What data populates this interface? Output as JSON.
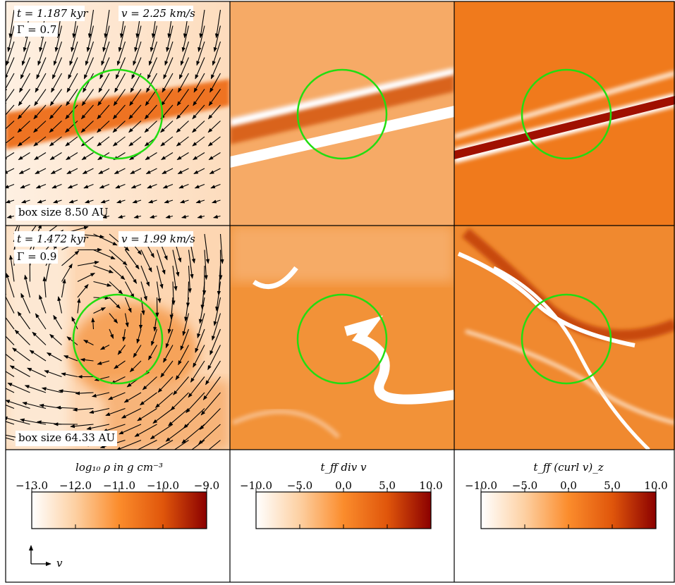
{
  "rows": [
    {
      "time": "t = 1.187 kyr",
      "speed": "v = 2.25 km/s",
      "gamma": "Γ = 0.7",
      "box_size": "box size 8.50 AU"
    },
    {
      "time": "t = 1.472 kyr",
      "speed": "v = 1.99 km/s",
      "gamma": "Γ = 0.9",
      "box_size": "box size 64.33 AU"
    }
  ],
  "colormap": [
    "#ffffff",
    "#fdd0a2",
    "#fb8c2c",
    "#e0560b",
    "#8b0000"
  ],
  "colorbars": [
    {
      "label": "log₁₀ ρ in g cm⁻³",
      "lim": [
        -13,
        -9
      ],
      "ticks": [
        {
          "value": -13,
          "label": "−13.0"
        },
        {
          "value": -12,
          "label": "−12.0"
        },
        {
          "value": -11,
          "label": "−11.0"
        },
        {
          "value": -10,
          "label": "−10.0"
        },
        {
          "value": -9,
          "label": "−9.0"
        }
      ]
    },
    {
      "label": "t_ff div v",
      "lim": [
        -10,
        10
      ],
      "ticks": [
        {
          "value": -10,
          "label": "−10.0"
        },
        {
          "value": -5,
          "label": "−5.0"
        },
        {
          "value": 0,
          "label": "0.0"
        },
        {
          "value": 5,
          "label": "5.0"
        },
        {
          "value": 10,
          "label": "10.0"
        }
      ]
    },
    {
      "label": "t_ff (curl v)_z",
      "lim": [
        -10,
        10
      ],
      "ticks": [
        {
          "value": -10,
          "label": "−10.0"
        },
        {
          "value": -5,
          "label": "−5.0"
        },
        {
          "value": 0,
          "label": "0.0"
        },
        {
          "value": 5,
          "label": "5.0"
        },
        {
          "value": 10,
          "label": "10.0"
        }
      ]
    }
  ],
  "legend_label": "v"
}
